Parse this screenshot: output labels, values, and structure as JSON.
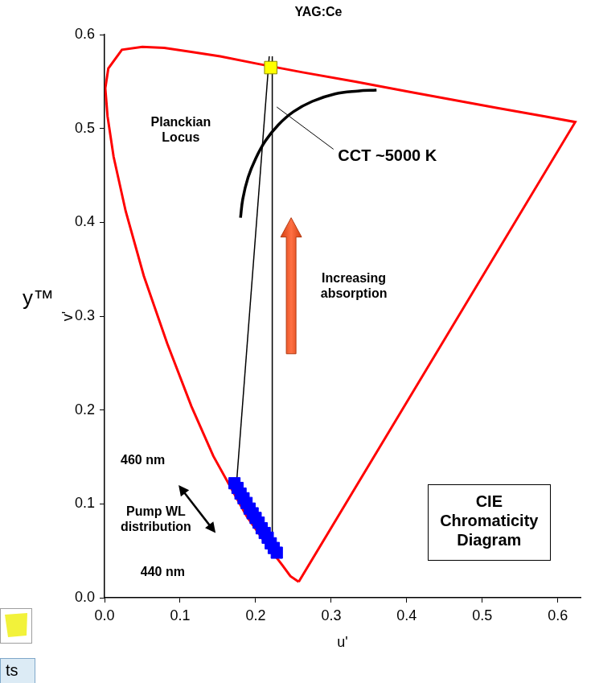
{
  "chart_data": {
    "type": "scatter",
    "title": "YAG:Ce",
    "x_label": "u'",
    "y_label": "v'",
    "xlim": [
      0,
      0.63
    ],
    "ylim": [
      0,
      0.6
    ],
    "xticks": [
      {
        "value": 0,
        "label": "0.0"
      },
      0.1,
      0.2,
      0.3,
      0.4,
      0.5,
      0.6
    ],
    "yticks": [
      {
        "value": 0,
        "label": "0.0"
      },
      0.1,
      0.2,
      0.3,
      0.4,
      0.5,
      0.6
    ],
    "grid": false,
    "series": [
      {
        "color": "#ff0000",
        "marker": "none",
        "line_style": "solid",
        "x": [
          0.257,
          0.246,
          0.235,
          0.216,
          0.188,
          0.144,
          0.115,
          0.083,
          0.052,
          0.028,
          0.012,
          0.004,
          0.001,
          0.005,
          0.023,
          0.05,
          0.079,
          0.113,
          0.153,
          0.203,
          0.262,
          0.332,
          0.404,
          0.52,
          0.583,
          0.623,
          0.257
        ],
        "values": [
          0.017,
          0.023,
          0.035,
          0.055,
          0.087,
          0.151,
          0.204,
          0.271,
          0.343,
          0.412,
          0.47,
          0.513,
          0.543,
          0.564,
          0.584,
          0.587,
          0.586,
          0.582,
          0.577,
          0.569,
          0.56,
          0.55,
          0.539,
          0.522,
          0.513,
          0.507,
          0.017
        ]
      },
      {
        "color": "#000000",
        "marker": "none",
        "line_style": "solid",
        "x": [
          0.18,
          0.183,
          0.19,
          0.2,
          0.213,
          0.23,
          0.25,
          0.275,
          0.305,
          0.335,
          0.36
        ],
        "values": [
          0.405,
          0.425,
          0.448,
          0.468,
          0.487,
          0.504,
          0.518,
          0.529,
          0.537,
          0.54,
          0.541
        ]
      },
      {
        "color": "#000000",
        "marker": "none",
        "line_style": "solid",
        "x": [
          0.175,
          0.218
        ],
        "values": [
          0.125,
          0.577
        ]
      },
      {
        "color": "#000000",
        "marker": "none",
        "line_style": "solid",
        "x": [
          0.222,
          0.222
        ],
        "values": [
          0.043,
          0.577
        ]
      },
      {
        "color": "#0000ff",
        "marker": "square",
        "line_style": "none",
        "x": [
          0.172,
          0.176,
          0.18,
          0.184,
          0.188,
          0.192,
          0.196,
          0.2,
          0.204,
          0.208,
          0.212,
          0.216,
          0.22,
          0.224,
          0.228
        ],
        "values": [
          0.122,
          0.117,
          0.111,
          0.106,
          0.101,
          0.095,
          0.09,
          0.085,
          0.08,
          0.074,
          0.069,
          0.064,
          0.058,
          0.053,
          0.048
        ]
      },
      {
        "color": "#ffff00",
        "marker": "square",
        "line_style": "none",
        "x": [
          0.22
        ],
        "values": [
          0.565
        ]
      }
    ],
    "annotations": [
      {
        "text": "Planckian Locus"
      },
      {
        "text": "CCT ~5000 K"
      },
      {
        "text": "Increasing absorption"
      },
      {
        "text": "460 nm"
      },
      {
        "text": "440 nm"
      },
      {
        "text": "Pump WL distribution"
      },
      {
        "text": "CIE Chromaticity Diagram"
      },
      {
        "text": "y™"
      },
      {
        "text": "ts"
      }
    ]
  }
}
